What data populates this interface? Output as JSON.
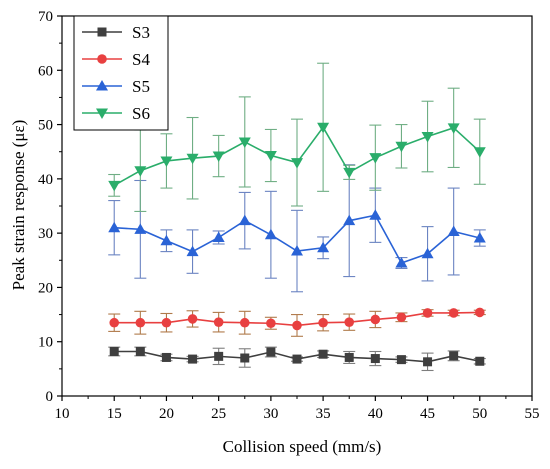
{
  "chart_data": {
    "type": "line",
    "title": "",
    "xlabel": "Collision speed (mm/s)",
    "ylabel": "Peak strain response (με)",
    "xlim": [
      10,
      55
    ],
    "ylim": [
      0,
      70
    ],
    "x_ticks": [
      10,
      15,
      20,
      25,
      30,
      35,
      40,
      45,
      50,
      55
    ],
    "y_ticks": [
      0,
      10,
      20,
      30,
      40,
      50,
      60,
      70
    ],
    "grid": false,
    "legend_position": "top-left",
    "x": [
      15,
      17.5,
      20,
      22.5,
      25,
      27.5,
      30,
      32.5,
      35,
      37.5,
      40,
      42.5,
      45,
      47.5,
      50
    ],
    "series": [
      {
        "name": "S3",
        "color": "#3f3f3f",
        "marker": "square",
        "values": [
          8.2,
          8.2,
          7.1,
          6.8,
          7.3,
          7.0,
          8.1,
          6.8,
          7.7,
          7.1,
          6.9,
          6.7,
          6.3,
          7.4,
          6.4
        ],
        "errors": [
          0.8,
          0.8,
          0.6,
          0.5,
          1.5,
          1.7,
          0.9,
          0.4,
          0.6,
          1.1,
          1.3,
          0.5,
          1.6,
          0.9,
          0.5
        ]
      },
      {
        "name": "S4",
        "color": "#e84040",
        "marker": "circle",
        "values": [
          13.5,
          13.5,
          13.5,
          14.2,
          13.6,
          13.5,
          13.4,
          13.0,
          13.5,
          13.6,
          14.1,
          14.5,
          15.3,
          15.3,
          15.4
        ],
        "errors": [
          1.6,
          2.1,
          1.7,
          1.5,
          1.8,
          2.1,
          1.1,
          2.0,
          1.5,
          1.5,
          1.5,
          0.8,
          0.6,
          0.5,
          0.4
        ]
      },
      {
        "name": "S5",
        "color": "#2a63d6",
        "marker": "triangle-up",
        "values": [
          31.0,
          30.7,
          28.6,
          26.6,
          29.2,
          32.3,
          29.7,
          26.7,
          27.3,
          32.3,
          33.3,
          24.5,
          26.2,
          30.3,
          29.1
        ],
        "errors": [
          5.0,
          9.0,
          2.0,
          4.0,
          1.2,
          5.2,
          8.0,
          7.5,
          2.0,
          10.3,
          5.0,
          1.0,
          5.0,
          8.0,
          1.5
        ]
      },
      {
        "name": "S6",
        "color": "#2aad6a",
        "marker": "triangle-down",
        "values": [
          38.8,
          41.5,
          43.3,
          43.8,
          44.2,
          46.8,
          44.3,
          43.0,
          49.5,
          41.2,
          43.9,
          46.0,
          47.8,
          49.4,
          45.0
        ],
        "errors": [
          2.0,
          7.5,
          5.0,
          7.5,
          3.8,
          8.3,
          4.8,
          8.0,
          11.8,
          1.3,
          6.0,
          4.0,
          6.5,
          7.3,
          6.0
        ]
      }
    ]
  }
}
